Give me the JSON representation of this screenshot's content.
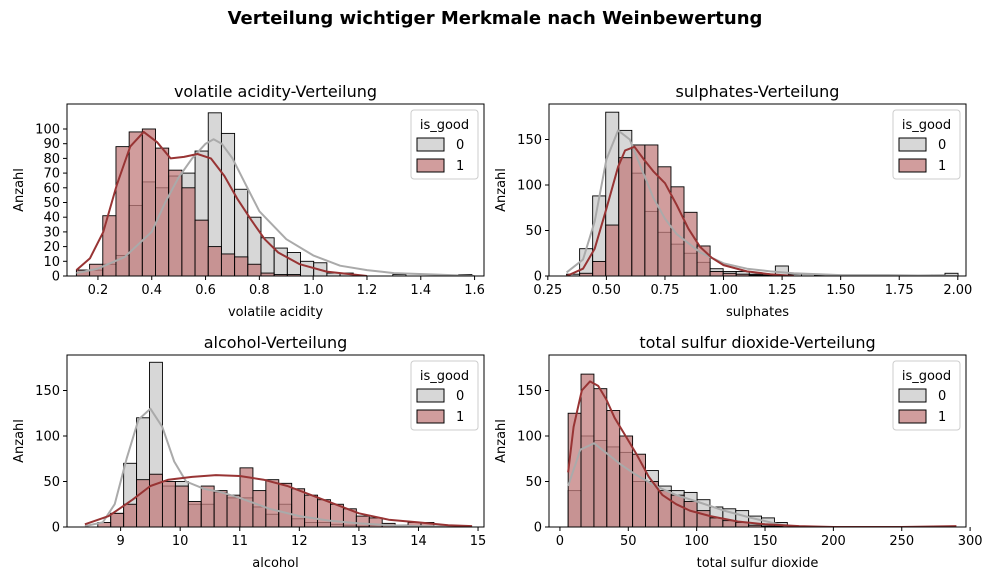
{
  "suptitle": "Verteilung wichtiger Merkmale nach Weinbewertung",
  "colors": {
    "class0_fill": "#c9c9c9",
    "class1_fill": "#c27c7c",
    "class0_kde": "#aaaaaa",
    "class1_kde": "#983434",
    "edge": "#000000"
  },
  "chart_data": [
    {
      "type": "histogram",
      "title": "volatile acidity-Verteilung",
      "xlabel": "volatile acidity",
      "ylabel": "Anzahl",
      "xlim": [
        0.085,
        1.635
      ],
      "ylim": [
        0,
        117
      ],
      "xticks": [
        0.2,
        0.4,
        0.6,
        0.8,
        1.0,
        1.2,
        1.4,
        1.6
      ],
      "xtick_labels": [
        "0.2",
        "0.4",
        "0.6",
        "0.8",
        "1.0",
        "1.2",
        "1.4",
        "1.6"
      ],
      "yticks": [
        0,
        10,
        20,
        30,
        40,
        50,
        60,
        70,
        80,
        90,
        100
      ],
      "bin_start": 0.12,
      "bin_width": 0.049,
      "legend": {
        "title": "is_good",
        "entries": [
          "0",
          "1"
        ],
        "position": "top-right"
      },
      "series": [
        {
          "name": "0",
          "counts": [
            4,
            4,
            8,
            14,
            48,
            64,
            60,
            68,
            70,
            85,
            111,
            97,
            59,
            40,
            26,
            19,
            16,
            10,
            9,
            2,
            2,
            0,
            0,
            0,
            1,
            0,
            0,
            0,
            0,
            1
          ],
          "kde_x": [
            0.12,
            0.2,
            0.3,
            0.4,
            0.45,
            0.5,
            0.55,
            0.6,
            0.63,
            0.66,
            0.7,
            0.75,
            0.8,
            0.9,
            1.0,
            1.1,
            1.2,
            1.3,
            1.45,
            1.6
          ],
          "kde_y": [
            2,
            5,
            13,
            30,
            50,
            67,
            80,
            90,
            93,
            90,
            80,
            62,
            44,
            25,
            14,
            7,
            4,
            2,
            1,
            0
          ]
        },
        {
          "name": "1",
          "counts": [
            4,
            8,
            41,
            88,
            98,
            100,
            87,
            72,
            60,
            38,
            20,
            15,
            13,
            8,
            2,
            1,
            1,
            0,
            0,
            0,
            0,
            0,
            0,
            0,
            0,
            0,
            0,
            0,
            0,
            0
          ],
          "kde_x": [
            0.12,
            0.17,
            0.22,
            0.27,
            0.32,
            0.37,
            0.42,
            0.47,
            0.52,
            0.57,
            0.62,
            0.67,
            0.72,
            0.77,
            0.82,
            0.87,
            0.95,
            1.05,
            1.2
          ],
          "kde_y": [
            4,
            12,
            30,
            62,
            88,
            98,
            91,
            80,
            81,
            83,
            80,
            68,
            52,
            38,
            25,
            16,
            8,
            3,
            0
          ]
        }
      ]
    },
    {
      "type": "histogram",
      "title": "sulphates-Verteilung",
      "xlabel": "sulphates",
      "ylabel": "Anzahl",
      "xlim": [
        0.255,
        2.035
      ],
      "ylim": [
        0,
        189
      ],
      "xticks": [
        0.25,
        0.5,
        0.75,
        1.0,
        1.25,
        1.5,
        1.75,
        2.0
      ],
      "xtick_labels": [
        "0.25",
        "0.50",
        "0.75",
        "1.00",
        "1.25",
        "1.50",
        "1.75",
        "2.00"
      ],
      "yticks": [
        0,
        50,
        100,
        150
      ],
      "bin_start": 0.33,
      "bin_width": 0.0557,
      "legend": {
        "title": "is_good",
        "entries": [
          "0",
          "1"
        ],
        "position": "top-right"
      },
      "series": [
        {
          "name": "0",
          "counts": [
            2,
            30,
            88,
            180,
            160,
            113,
            71,
            48,
            35,
            25,
            15,
            8,
            5,
            5,
            2,
            2,
            11,
            2,
            2,
            1,
            1,
            1,
            1,
            1,
            1,
            1,
            1,
            1,
            1,
            3
          ],
          "kde_x": [
            0.33,
            0.4,
            0.45,
            0.5,
            0.55,
            0.6,
            0.65,
            0.7,
            0.75,
            0.8,
            0.9,
            1.0,
            1.1,
            1.2,
            1.3,
            1.5,
            1.7,
            2.0
          ],
          "kde_y": [
            4,
            18,
            60,
            128,
            160,
            150,
            118,
            86,
            63,
            46,
            26,
            14,
            8,
            5,
            3,
            1,
            1,
            0
          ]
        },
        {
          "name": "1",
          "counts": [
            0,
            3,
            16,
            56,
            130,
            144,
            144,
            120,
            98,
            70,
            33,
            5,
            3,
            2,
            1,
            1,
            0,
            0,
            0,
            0,
            0,
            0,
            0,
            0,
            0,
            0,
            0,
            0,
            0,
            0
          ],
          "kde_x": [
            0.33,
            0.4,
            0.45,
            0.5,
            0.55,
            0.58,
            0.62,
            0.66,
            0.7,
            0.75,
            0.8,
            0.85,
            0.9,
            0.95,
            1.0,
            1.1,
            1.2,
            1.3
          ],
          "kde_y": [
            0,
            8,
            30,
            74,
            120,
            138,
            142,
            128,
            115,
            102,
            78,
            52,
            32,
            20,
            12,
            5,
            2,
            0
          ]
        }
      ]
    },
    {
      "type": "histogram",
      "title": "alcohol-Verteilung",
      "xlabel": "alcohol",
      "ylabel": "Anzahl",
      "xlim": [
        8.1,
        15.1
      ],
      "ylim": [
        0,
        189
      ],
      "xticks": [
        9,
        10,
        11,
        12,
        13,
        14,
        15
      ],
      "xtick_labels": [
        "9",
        "10",
        "11",
        "12",
        "13",
        "14",
        "15"
      ],
      "yticks": [
        0,
        50,
        100,
        150
      ],
      "bin_start": 8.4,
      "bin_width": 0.217,
      "legend": {
        "title": "is_good",
        "entries": [
          "0",
          "1"
        ],
        "position": "top-right"
      },
      "series": [
        {
          "name": "0",
          "counts": [
            0,
            0,
            15,
            70,
            120,
            181,
            45,
            50,
            25,
            25,
            38,
            32,
            32,
            22,
            14,
            25,
            9,
            5,
            5,
            3,
            2,
            1,
            2,
            0,
            0,
            0,
            0,
            0,
            0,
            0
          ],
          "kde_x": [
            8.4,
            8.7,
            8.9,
            9.1,
            9.3,
            9.5,
            9.7,
            9.9,
            10.1,
            10.4,
            10.7,
            11.0,
            11.5,
            12.0,
            12.5,
            13.0,
            13.5,
            14.0,
            14.9
          ],
          "kde_y": [
            1,
            5,
            25,
            75,
            118,
            130,
            110,
            72,
            50,
            42,
            38,
            32,
            20,
            12,
            7,
            4,
            2,
            1,
            0
          ]
        },
        {
          "name": "1",
          "counts": [
            0,
            5,
            15,
            25,
            52,
            58,
            50,
            45,
            28,
            45,
            40,
            35,
            65,
            40,
            52,
            48,
            42,
            35,
            30,
            25,
            20,
            12,
            10,
            4,
            2,
            5,
            5,
            0,
            0,
            0
          ],
          "kde_x": [
            8.4,
            8.8,
            9.2,
            9.5,
            9.8,
            10.2,
            10.6,
            11.0,
            11.4,
            11.8,
            12.2,
            12.6,
            13.0,
            13.5,
            14.0,
            14.5,
            14.9
          ],
          "kde_y": [
            3,
            12,
            30,
            45,
            52,
            55,
            57,
            56,
            52,
            45,
            35,
            25,
            15,
            8,
            5,
            2,
            1
          ]
        }
      ]
    },
    {
      "type": "histogram",
      "title": "total sulfur dioxide-Verteilung",
      "xlabel": "total sulfur dioxide",
      "ylabel": "Anzahl",
      "xlim": [
        -8,
        297
      ],
      "ylim": [
        0,
        189
      ],
      "xticks": [
        0,
        50,
        100,
        150,
        200,
        250,
        300
      ],
      "xtick_labels": [
        "0",
        "50",
        "100",
        "150",
        "200",
        "250",
        "300"
      ],
      "yticks": [
        0,
        50,
        100,
        150
      ],
      "bin_start": 6,
      "bin_width": 9.43,
      "legend": {
        "title": "is_good",
        "entries": [
          "0",
          "1"
        ],
        "position": "top-right"
      },
      "series": [
        {
          "name": "0",
          "counts": [
            40,
            100,
            95,
            88,
            82,
            50,
            62,
            45,
            40,
            38,
            30,
            22,
            20,
            18,
            12,
            10,
            5,
            0,
            0,
            0,
            0,
            0,
            0,
            0,
            0,
            0,
            0,
            0,
            0,
            0
          ],
          "kde_x": [
            6,
            15,
            25,
            35,
            45,
            55,
            70,
            85,
            100,
            120,
            140,
            160,
            170
          ],
          "kde_y": [
            45,
            85,
            92,
            80,
            68,
            58,
            45,
            35,
            28,
            18,
            10,
            3,
            0
          ]
        },
        {
          "name": "1",
          "counts": [
            125,
            168,
            152,
            128,
            100,
            80,
            50,
            40,
            35,
            28,
            18,
            10,
            7,
            5,
            2,
            1,
            1,
            0,
            0,
            0,
            0,
            0,
            0,
            0,
            0,
            0,
            0,
            0,
            0,
            1
          ],
          "kde_x": [
            6,
            10,
            16,
            22,
            28,
            34,
            40,
            48,
            56,
            65,
            75,
            85,
            95,
            110,
            130,
            150,
            175,
            200,
            250,
            290
          ],
          "kde_y": [
            60,
            110,
            150,
            160,
            155,
            140,
            120,
            100,
            80,
            55,
            35,
            25,
            18,
            12,
            6,
            3,
            1,
            0,
            0,
            1
          ]
        }
      ]
    }
  ]
}
